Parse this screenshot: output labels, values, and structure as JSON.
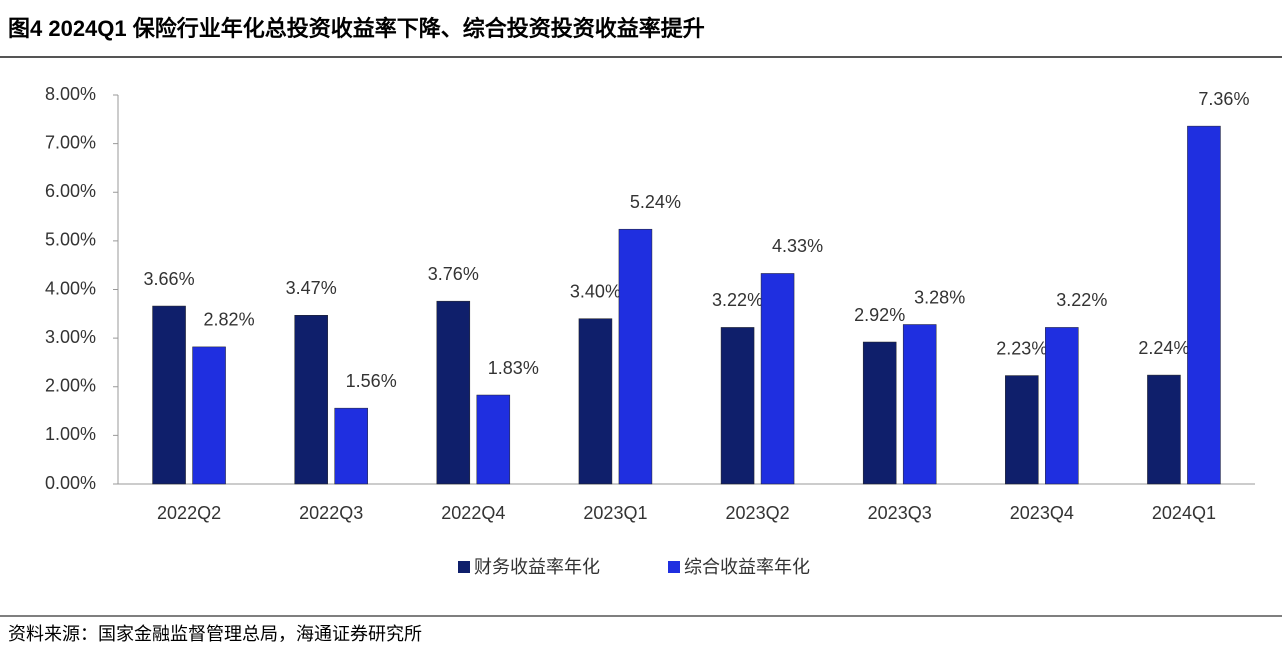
{
  "header": {
    "title": "图4  2024Q1 保险行业年化总投资收益率下降、综合投资投资收益率提升"
  },
  "chart_data": {
    "type": "bar",
    "categories": [
      "2022Q2",
      "2022Q3",
      "2022Q4",
      "2023Q1",
      "2023Q2",
      "2023Q3",
      "2023Q4",
      "2024Q1"
    ],
    "series": [
      {
        "name": "财务收益率年化",
        "color": "#0f1f6b",
        "values": [
          3.66,
          3.47,
          3.76,
          3.4,
          3.22,
          2.92,
          2.23,
          2.24
        ],
        "value_labels": [
          "3.66%",
          "3.47%",
          "3.76%",
          "3.40%",
          "3.22%",
          "2.92%",
          "2.23%",
          "2.24%"
        ]
      },
      {
        "name": "综合收益率年化",
        "color": "#1f2fe0",
        "values": [
          2.82,
          1.56,
          1.83,
          5.24,
          4.33,
          3.28,
          3.22,
          7.36
        ],
        "value_labels": [
          "2.82%",
          "1.56%",
          "1.83%",
          "5.24%",
          "4.33%",
          "3.28%",
          "3.22%",
          "7.36%"
        ]
      }
    ],
    "ylim": [
      0,
      8
    ],
    "yticks": [
      {
        "value": 0,
        "label": "0.00%"
      },
      {
        "value": 1,
        "label": "1.00%"
      },
      {
        "value": 2,
        "label": "2.00%"
      },
      {
        "value": 3,
        "label": "3.00%"
      },
      {
        "value": 4,
        "label": "4.00%"
      },
      {
        "value": 5,
        "label": "5.00%"
      },
      {
        "value": 6,
        "label": "6.00%"
      },
      {
        "value": 7,
        "label": "7.00%"
      },
      {
        "value": 8,
        "label": "8.00%"
      }
    ],
    "grid": false,
    "legend": "bottom"
  },
  "footer": {
    "source": "资料来源：国家金融监督管理总局，海通证券研究所"
  }
}
